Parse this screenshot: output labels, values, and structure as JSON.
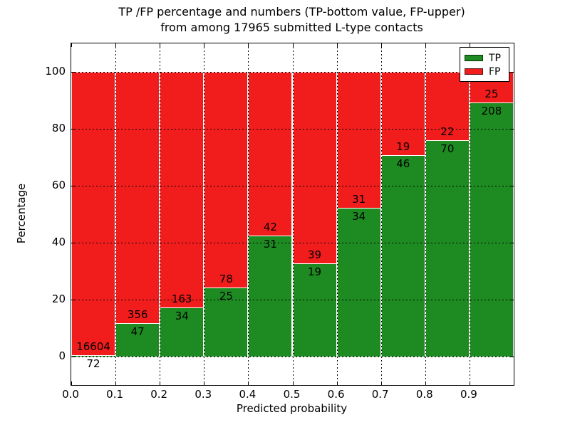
{
  "title": {
    "line1": "TP /FP percentage and numbers (TP-bottom value, FP-upper)",
    "line2": "from among 17965 submitted L-type contacts"
  },
  "chart_data": {
    "type": "bar",
    "stacked": true,
    "normalized_to_percent": true,
    "title": "TP /FP percentage and numbers (TP-bottom value, FP-upper)\nfrom among 17965 submitted L-type contacts",
    "total_contacts": 17965,
    "xlabel": "Predicted probability",
    "ylabel": "Percentage",
    "bin_width": 0.1,
    "bin_starts": [
      0.0,
      0.1,
      0.2,
      0.3,
      0.4,
      0.5,
      0.6,
      0.7,
      0.8,
      0.9
    ],
    "series": [
      {
        "name": "TP",
        "color": "#1e8b22",
        "counts": [
          72,
          47,
          34,
          25,
          31,
          19,
          34,
          46,
          70,
          208
        ]
      },
      {
        "name": "FP",
        "color": "#f11d1d",
        "counts": [
          16604,
          356,
          163,
          78,
          42,
          39,
          31,
          19,
          22,
          25
        ]
      }
    ],
    "tp_pct": [
      0.43,
      11.66,
      17.26,
      24.27,
      42.47,
      32.76,
      52.31,
      70.77,
      76.09,
      89.27
    ],
    "xlim": [
      0.0,
      1.0
    ],
    "ylim": [
      -10,
      110
    ],
    "xticks": [
      "0.0",
      "0.1",
      "0.2",
      "0.3",
      "0.4",
      "0.5",
      "0.6",
      "0.7",
      "0.8",
      "0.9"
    ],
    "yticks": [
      "0",
      "20",
      "40",
      "60",
      "80",
      "100"
    ],
    "ytick_values": [
      0,
      20,
      40,
      60,
      80,
      100
    ],
    "grid": true,
    "grid_style": "dotted",
    "legend": {
      "position": "upper right",
      "entries": [
        {
          "label": "TP",
          "color": "#1e8b22"
        },
        {
          "label": "FP",
          "color": "#f11d1d"
        }
      ]
    }
  }
}
